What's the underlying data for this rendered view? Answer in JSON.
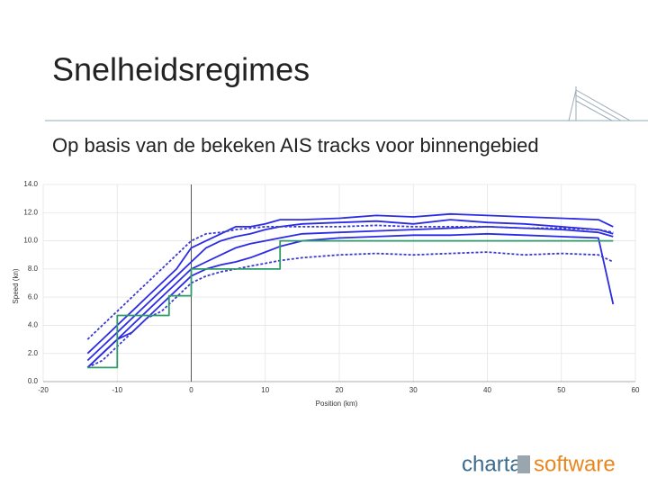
{
  "slide": {
    "title": "Snelheidsregimes",
    "subtitle": "Op basis van de bekeken AIS tracks voor binnengebied",
    "logo": [
      "charta",
      "software"
    ]
  },
  "chart_data": {
    "type": "line",
    "x_label": "Position (km)",
    "y_label": "Speed (kn)",
    "xlim": [
      -20,
      60
    ],
    "xticks": [
      -20,
      -10,
      0,
      10,
      20,
      30,
      40,
      50,
      60
    ],
    "ylim": [
      0,
      14
    ],
    "yticks": [
      {
        "value": 0,
        "label": "0.0"
      },
      {
        "value": 2,
        "label": "2.0"
      },
      {
        "value": 4,
        "label": "4.0"
      },
      {
        "value": 6,
        "label": "6.0"
      },
      {
        "value": 8,
        "label": "8.0"
      },
      {
        "value": 10,
        "label": "10.0"
      },
      {
        "value": 12,
        "label": "12.0"
      },
      {
        "value": 14,
        "label": "14.0"
      }
    ],
    "vertical_line_x": 0,
    "x": [
      -14,
      -12,
      -10,
      -8,
      -6,
      -4,
      -2,
      0,
      2,
      4,
      6,
      8,
      10,
      12,
      15,
      20,
      25,
      30,
      35,
      40,
      45,
      50,
      55,
      57
    ],
    "series": [
      {
        "color": "#2b2be6",
        "dashed": false,
        "values": [
          2,
          3,
          4,
          5,
          6,
          7,
          8,
          9.5,
          10,
          10.5,
          11,
          11,
          11.2,
          11.5,
          11.5,
          11.6,
          11.8,
          11.7,
          11.9,
          11.8,
          11.7,
          11.6,
          11.5,
          11
        ]
      },
      {
        "color": "#2b2be6",
        "dashed": false,
        "values": [
          1.5,
          2.5,
          3.5,
          4.5,
          5.5,
          6.5,
          7.5,
          8.5,
          9.5,
          10,
          10.3,
          10.5,
          10.8,
          11,
          11.2,
          11.3,
          11.4,
          11.2,
          11.5,
          11.3,
          11.2,
          11,
          10.8,
          10.5
        ]
      },
      {
        "color": "#2b2be6",
        "dashed": false,
        "values": [
          1,
          2,
          3,
          4,
          5,
          6,
          7,
          8,
          8.5,
          9,
          9.5,
          9.8,
          10,
          10.2,
          10.5,
          10.6,
          10.7,
          10.8,
          10.9,
          11,
          10.9,
          10.8,
          10.6,
          10.3
        ]
      },
      {
        "color": "#2b2be6",
        "dashed": false,
        "values": [
          1,
          2,
          3,
          3.5,
          4.5,
          5.5,
          6.5,
          7.5,
          8,
          8.3,
          8.5,
          8.8,
          9.2,
          9.6,
          10,
          10.2,
          10.3,
          10.4,
          10.4,
          10.5,
          10.4,
          10.3,
          10.2,
          5.5
        ]
      },
      {
        "color": "#3a3ad0",
        "dashed": true,
        "values": [
          3,
          4,
          5,
          6,
          7,
          8,
          9,
          10,
          10.5,
          10.6,
          10.8,
          10.9,
          11,
          11,
          11,
          11,
          11.1,
          11,
          11,
          11,
          10.9,
          10.9,
          10.8,
          10.6
        ]
      },
      {
        "color": "#3a3ad0",
        "dashed": true,
        "values": [
          1,
          1.5,
          2.5,
          3.5,
          4.5,
          5,
          6,
          7,
          7.5,
          7.8,
          8,
          8.2,
          8.4,
          8.6,
          8.8,
          9,
          9.1,
          9,
          9.1,
          9.2,
          9,
          9.1,
          9,
          8.5
        ]
      },
      {
        "color": "#2e9a6a",
        "dashed": false,
        "x": [
          -14,
          -10,
          -10,
          -3,
          -3,
          0,
          0,
          12,
          12,
          57
        ],
        "values": [
          1,
          1,
          4.7,
          4.7,
          6.1,
          6.1,
          8,
          8,
          10,
          10
        ]
      }
    ]
  }
}
